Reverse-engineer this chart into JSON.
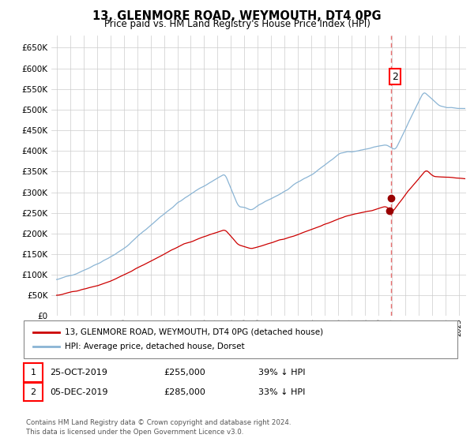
{
  "title": "13, GLENMORE ROAD, WEYMOUTH, DT4 0PG",
  "subtitle": "Price paid vs. HM Land Registry's House Price Index (HPI)",
  "legend_line1": "13, GLENMORE ROAD, WEYMOUTH, DT4 0PG (detached house)",
  "legend_line2": "HPI: Average price, detached house, Dorset",
  "annotation1_label": "1",
  "annotation1_date": "25-OCT-2019",
  "annotation1_price": "£255,000",
  "annotation1_pct": "39% ↓ HPI",
  "annotation2_label": "2",
  "annotation2_date": "05-DEC-2019",
  "annotation2_price": "£285,000",
  "annotation2_pct": "33% ↓ HPI",
  "footer": "Contains HM Land Registry data © Crown copyright and database right 2024.\nThis data is licensed under the Open Government Licence v3.0.",
  "hpi_color": "#8ab4d4",
  "price_color": "#cc0000",
  "dashed_line_color": "#e87070",
  "marker_color": "#990000",
  "background_color": "#ffffff",
  "grid_color": "#cccccc",
  "ylim": [
    0,
    680000
  ],
  "yticks": [
    0,
    50000,
    100000,
    150000,
    200000,
    250000,
    300000,
    350000,
    400000,
    450000,
    500000,
    550000,
    600000,
    650000
  ],
  "sale1_x": 2019.81,
  "sale1_y": 255000,
  "sale2_x": 2019.93,
  "sale2_y": 285000,
  "vline_x": 2019.93,
  "xlim_left": 1994.6,
  "xlim_right": 2025.5
}
